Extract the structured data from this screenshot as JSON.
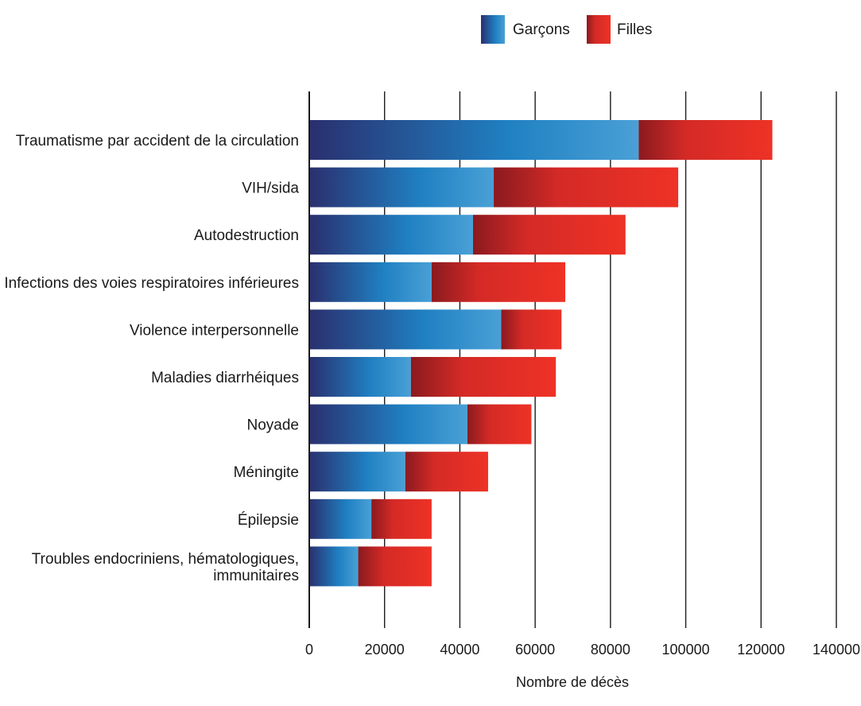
{
  "chart_data": {
    "type": "bar",
    "orientation": "horizontal",
    "stacked": true,
    "categories": [
      "Traumatisme par accident de la circulation",
      "VIH/sida",
      "Autodestruction",
      "Infections des voies respiratoires inférieures",
      "Violence interpersonnelle",
      "Maladies diarrhéiques",
      "Noyade",
      "Méningite",
      "Épilepsie",
      "Troubles endocriniens, hématologiques, immunitaires"
    ],
    "category_lines": [
      [
        "Traumatisme par accident de la circulation"
      ],
      [
        "VIH/sida"
      ],
      [
        "Autodestruction"
      ],
      [
        "Infections des voies respiratoires inférieures"
      ],
      [
        "Violence interpersonnelle"
      ],
      [
        "Maladies diarrhéiques"
      ],
      [
        "Noyade"
      ],
      [
        "Méningite"
      ],
      [
        "Épilepsie"
      ],
      [
        "Troubles endocriniens, hématologiques,",
        "immunitaires"
      ]
    ],
    "series": [
      {
        "name": "Garçons",
        "values": [
          87500,
          49000,
          43500,
          32500,
          51000,
          27000,
          42000,
          25500,
          16500,
          13000
        ],
        "color_dark": "#2a2f6e",
        "color_mid": "#1f80c2",
        "color_light": "#4aa0d6"
      },
      {
        "name": "Filles",
        "values": [
          35500,
          49000,
          40500,
          35500,
          16000,
          38500,
          17000,
          22000,
          16000,
          19500
        ],
        "color_dark": "#8a1a1f",
        "color_mid": "#d42a26",
        "color_light": "#ee3226"
      }
    ],
    "xlabel": "Nombre de décès",
    "xlim": [
      0,
      140000
    ],
    "xticks": [
      0,
      20000,
      40000,
      60000,
      80000,
      100000,
      120000,
      140000
    ],
    "xtick_labels": [
      "0",
      "20000",
      "40000",
      "60000",
      "80000",
      "100000",
      "120000",
      "140000"
    ],
    "grid": "vertical",
    "legend_position": "top"
  }
}
